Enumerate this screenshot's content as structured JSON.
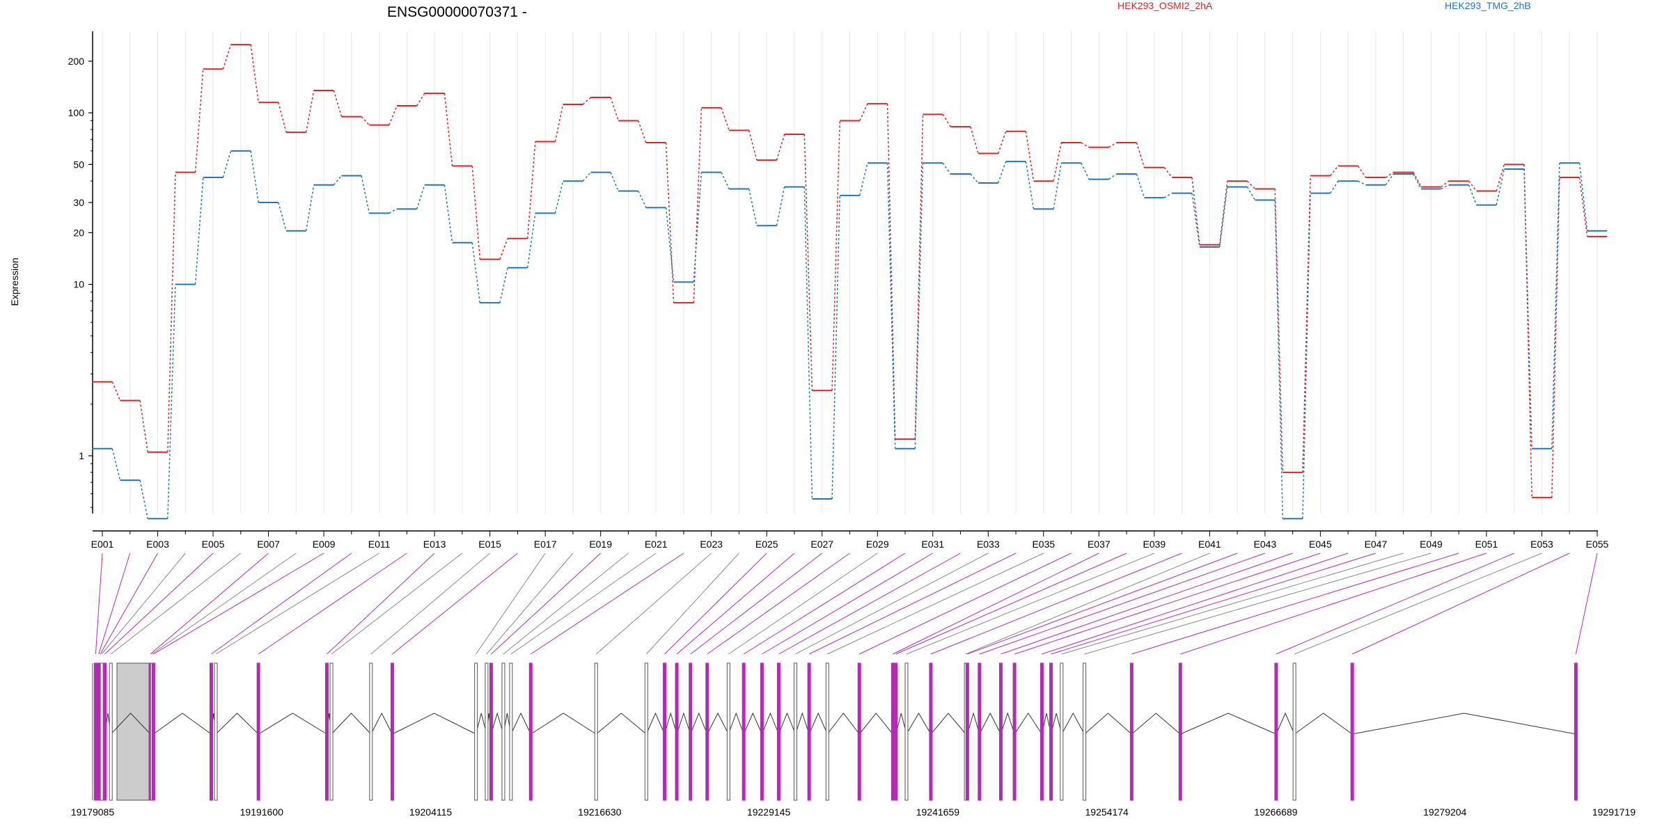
{
  "chart_data": {
    "type": "line",
    "title": "ENSG00000070371 -",
    "ylabel": "Expression",
    "xlabel": "",
    "y_scale": "log",
    "ylim": [
      0.4,
      300
    ],
    "y_ticks": [
      {
        "value": 1,
        "label": "1"
      },
      {
        "value": 10,
        "label": "10"
      },
      {
        "value": 20,
        "label": "20"
      },
      {
        "value": 30,
        "label": "30"
      },
      {
        "value": 50,
        "label": "50"
      },
      {
        "value": 100,
        "label": "100"
      },
      {
        "value": 200,
        "label": "200"
      }
    ],
    "exons": [
      "E001",
      "E002",
      "E003",
      "E004",
      "E005",
      "E006",
      "E007",
      "E008",
      "E009",
      "E010",
      "E011",
      "E012",
      "E013",
      "E014",
      "E015",
      "E016",
      "E017",
      "E018",
      "E019",
      "E020",
      "E021",
      "E022",
      "E023",
      "E024",
      "E025",
      "E026",
      "E027",
      "E028",
      "E029",
      "E030",
      "E031",
      "E032",
      "E033",
      "E034",
      "E035",
      "E036",
      "E037",
      "E038",
      "E039",
      "E040",
      "E041",
      "E042",
      "E043",
      "E044",
      "E045",
      "E046",
      "E047",
      "E048",
      "E049",
      "E050",
      "E051",
      "E052",
      "E053",
      "E054",
      "E055"
    ],
    "exon_tick_labels": [
      "E001",
      "E003",
      "E005",
      "E007",
      "E009",
      "E011",
      "E013",
      "E015",
      "E017",
      "E019",
      "E021",
      "E023",
      "E025",
      "E027",
      "E029",
      "E031",
      "E033",
      "E035",
      "E037",
      "E039",
      "E041",
      "E043",
      "E045",
      "E047",
      "E049",
      "E051",
      "E053",
      "E055"
    ],
    "grid": true,
    "legend_position": "top-right",
    "series": [
      {
        "name": "HEK293_OSMI2_2hA",
        "color": "#d62728",
        "values": [
          2.7,
          2.1,
          1.05,
          45,
          180,
          250,
          115,
          77,
          135,
          95,
          85,
          110,
          130,
          49,
          14,
          18.5,
          68,
          112,
          123,
          90,
          67,
          7.8,
          107,
          79,
          53,
          75,
          2.4,
          90,
          113,
          1.25,
          98,
          83,
          58,
          78,
          40,
          67,
          63,
          67,
          48,
          42,
          17,
          40,
          36,
          0.8,
          43,
          49,
          42,
          45,
          37,
          40,
          35,
          50,
          0.57,
          42,
          19
        ]
      },
      {
        "name": "HEK293_TMG_2hB",
        "color": "#1f77b4",
        "values": [
          1.1,
          0.72,
          0.43,
          10,
          42,
          60,
          30,
          20.5,
          38,
          43,
          26,
          27.5,
          38,
          17.5,
          7.8,
          12.5,
          26,
          40,
          45,
          35,
          28,
          10.3,
          45,
          36,
          22,
          37,
          0.56,
          33,
          51,
          1.1,
          51,
          44,
          39,
          52,
          27.5,
          51,
          41,
          44,
          32,
          34,
          16.5,
          37,
          31,
          0.43,
          34,
          40,
          38,
          44,
          36,
          38,
          29,
          47,
          1.1,
          51,
          20.5
        ]
      }
    ],
    "coordinate_axis": {
      "ticks": [
        "19179085",
        "19191600",
        "19204115",
        "19216630",
        "19229145",
        "19241659",
        "19254174",
        "19266689",
        "19279204",
        "19291719"
      ]
    },
    "exon_bar_colors": {
      "highlight": "#b52ab5",
      "normal": "#888888",
      "intron_block": "#cccccc"
    }
  }
}
